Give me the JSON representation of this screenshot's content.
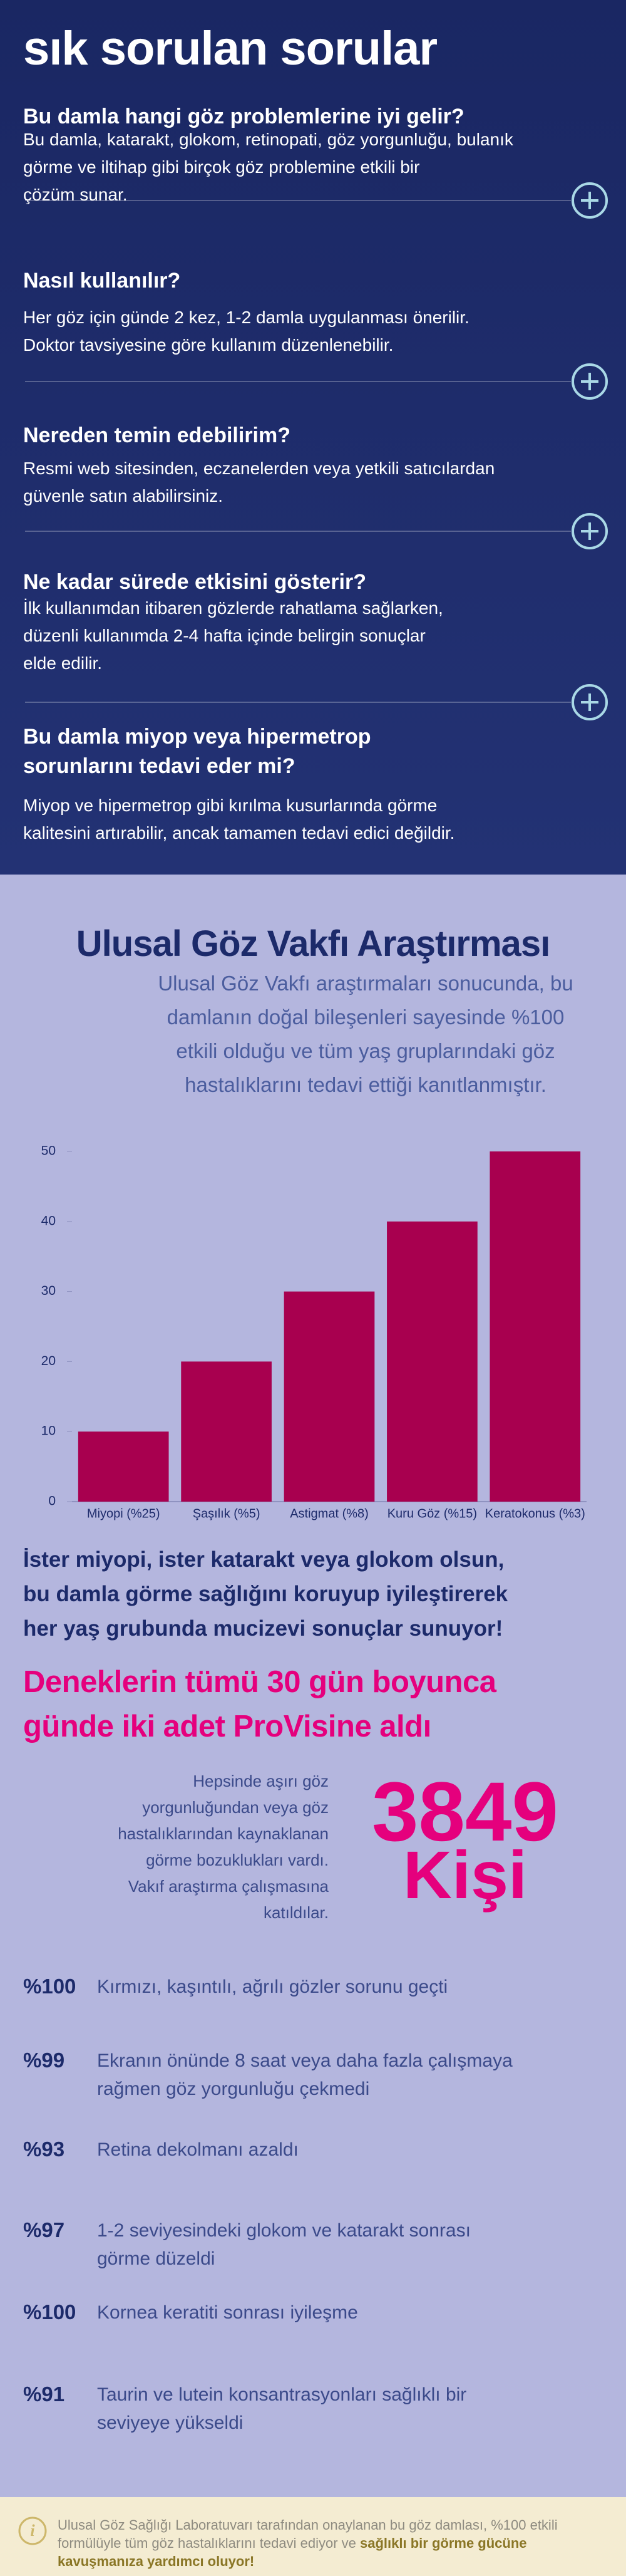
{
  "faq": {
    "title": "sık sorulan sorular",
    "items": [
      {
        "question_lines": [
          "Bu damla hangi göz problemlerine iyi gelir?"
        ],
        "answer_lines": [
          "Bu damla, katarakt, glokom, retinopati, göz yorgunluğu, bulanık",
          "görme ve iltihap gibi birçok göz problemine etkili bir",
          "çözüm sunar."
        ]
      },
      {
        "question_lines": [
          "Nasıl kullanılır?"
        ],
        "answer_lines": [
          "Her göz için günde 2 kez, 1-2 damla uygulanması önerilir.",
          "Doktor tavsiyesine göre kullanım düzenlenebilir."
        ]
      },
      {
        "question_lines": [
          "Nereden temin edebilirim?"
        ],
        "answer_lines": [
          "Resmi web sitesinden, eczanelerden veya yetkili satıcılardan",
          "güvenle satın alabilirsiniz."
        ]
      },
      {
        "question_lines": [
          "Ne kadar sürede etkisini gösterir?"
        ],
        "answer_lines": [
          "İlk kullanımdan itibaren gözlerde rahatlama sağlarken,",
          "düzenli kullanımda 2-4 hafta içinde belirgin sonuçlar",
          "elde edilir."
        ]
      },
      {
        "question_lines": [
          "Bu damla miyop veya hipermetrop",
          "sorunlarını tedavi eder mi?"
        ],
        "answer_lines": [
          "Miyop ve hipermetrop gibi kırılma kusurlarında görme",
          "kalitesini artırabilir, ancak tamamen tedavi edici değildir."
        ]
      }
    ]
  },
  "research": {
    "title": "Ulusal Göz Vakfı Araştırması",
    "description_lines": [
      "Ulusal Göz Vakfı araştırmaları sonucunda, bu",
      "damlanın doğal bileşenleri sayesinde %100",
      "etkili olduğu ve tüm yaş gruplarındaki göz",
      "hastalıklarını tedavi ettiği kanıtlanmıştır."
    ],
    "statement_lines": [
      "İster miyopi, ister katarakt veya glokom olsun,",
      "bu damla görme sağlığını koruyup iyileştirerek",
      "her yaş grubunda mucizevi sonuçlar sunuyor!"
    ],
    "headline_lines": [
      "Deneklerin tümü 30 gün boyunca",
      "günde  iki adet ProVisine aldı"
    ],
    "participants_lines": [
      "Hepsinde aşırı göz",
      "yorgunluğundan veya göz",
      "hastalıklarından kaynaklanan",
      "görme bozuklukları vardı.",
      "Vakıf araştırma çalışmasına",
      "katıldılar."
    ],
    "participants_count": "3849",
    "participants_unit": "Kişi",
    "stats": [
      {
        "value": "%100",
        "text_lines": [
          "Kırmızı, kaşıntılı, ağrılı gözler sorunu geçti"
        ]
      },
      {
        "value": "%99",
        "text_lines": [
          "Ekranın önünde 8 saat veya daha fazla çalışmaya",
          "rağmen göz yorgunluğu çekmedi"
        ]
      },
      {
        "value": "%93",
        "text_lines": [
          "Retina dekolmanı azaldı"
        ]
      },
      {
        "value": "%97",
        "text_lines": [
          "1-2 seviyesindeki glokom ve katarakt sonrası",
          "görme düzeldi"
        ]
      },
      {
        "value": "%100",
        "text_lines": [
          "Kornea keratiti sonrası iyileşme"
        ]
      },
      {
        "value": "%91",
        "text_lines": [
          "Taurin ve lutein konsantrasyonları sağlıklı bir",
          "seviyeye yükseldi"
        ]
      }
    ]
  },
  "chart_data": {
    "type": "bar",
    "categories": [
      "Miyopi (%25)",
      "Şaşılık (%5)",
      "Astigmat (%8)",
      "Kuru Göz (%15)",
      "Keratokonus (%3)"
    ],
    "values": [
      10,
      20,
      30,
      40,
      50
    ],
    "color": "#a8004f",
    "ylim": [
      0,
      50
    ],
    "yticks": [
      0,
      10,
      20,
      30,
      40,
      50
    ],
    "grid": false
  },
  "footer": {
    "text": "Ulusal Göz Sağlığı Laboratuvarı tarafından onaylanan bu göz damlası, %100 etkili formülüyle tüm göz hastalıklarını tedavi ediyor ve",
    "emphasis": "sağlıklı bir görme gücüne kavuşmanıza yardımcı oluyor!"
  }
}
